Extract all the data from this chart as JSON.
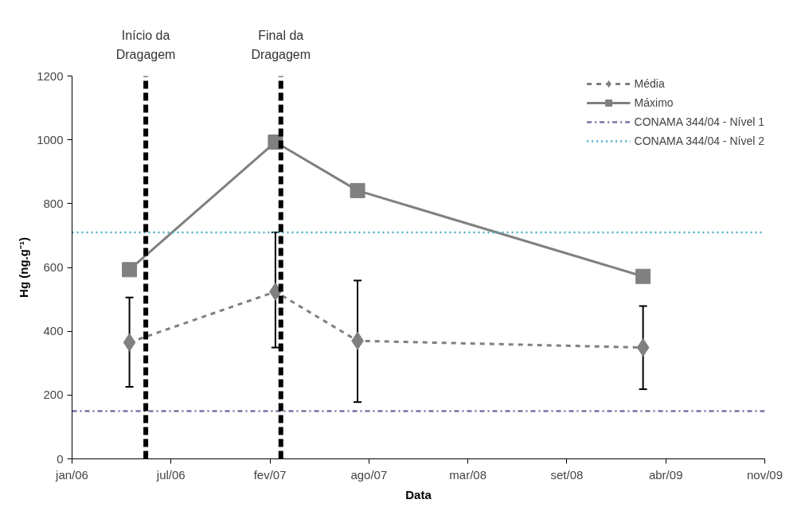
{
  "chart_data": {
    "type": "line",
    "xlabel": "Data",
    "ylabel": "Hg (ng.g⁻¹)",
    "x": [
      "2006-04-27",
      "2007-02-16",
      "2007-08-01",
      "2009-02-28"
    ],
    "series": [
      {
        "name": "Média",
        "color": "#808080",
        "values": [
          365,
          524,
          370,
          349
        ],
        "errors": [
          [
            226,
            506
          ],
          [
            349,
            710
          ],
          [
            178,
            559
          ],
          [
            218,
            479
          ]
        ],
        "marker": "diamond",
        "line_style": "dashed"
      },
      {
        "name": "Máximo",
        "color": "#808080",
        "values": [
          593,
          993,
          841,
          572
        ],
        "marker": "square",
        "line_style": "solid"
      }
    ],
    "ref_lines": [
      {
        "axis": "y",
        "value": 150,
        "label": "CONAMA 344/04 - Nível 1",
        "color": "#7f6fa0",
        "line_style": "dashdot"
      },
      {
        "axis": "y",
        "value": 710,
        "label": "CONAMA 344/04 - Nível 2",
        "color": "#4bacc6",
        "line_style": "dotted"
      },
      {
        "axis": "x",
        "value": "2006-05-30",
        "label": "Início da Dragagem",
        "color": "#000000",
        "line_style": "dashed"
      },
      {
        "axis": "x",
        "value": "2007-02-27",
        "label": "Final da Dragagem",
        "color": "#000000",
        "line_style": "dashed"
      }
    ],
    "xlim": [
      "2006-01-01",
      "2009-11-01"
    ],
    "xticks": [
      {
        "value": "2006-01-01",
        "label": "jan/06"
      },
      {
        "value": "2006-07-20",
        "label": "jul/06"
      },
      {
        "value": "2007-02-05",
        "label": "fev/07"
      },
      {
        "value": "2007-08-24",
        "label": "ago/07"
      },
      {
        "value": "2008-03-11",
        "label": "mar/08"
      },
      {
        "value": "2008-09-27",
        "label": "set/08"
      },
      {
        "value": "2009-04-15",
        "label": "abr/09"
      },
      {
        "value": "2009-11-01",
        "label": "nov/09"
      }
    ],
    "ylim": [
      0,
      1200
    ],
    "yticks": [
      0,
      200,
      400,
      600,
      800,
      1000,
      1200
    ],
    "grid": false,
    "legend": "top right"
  }
}
